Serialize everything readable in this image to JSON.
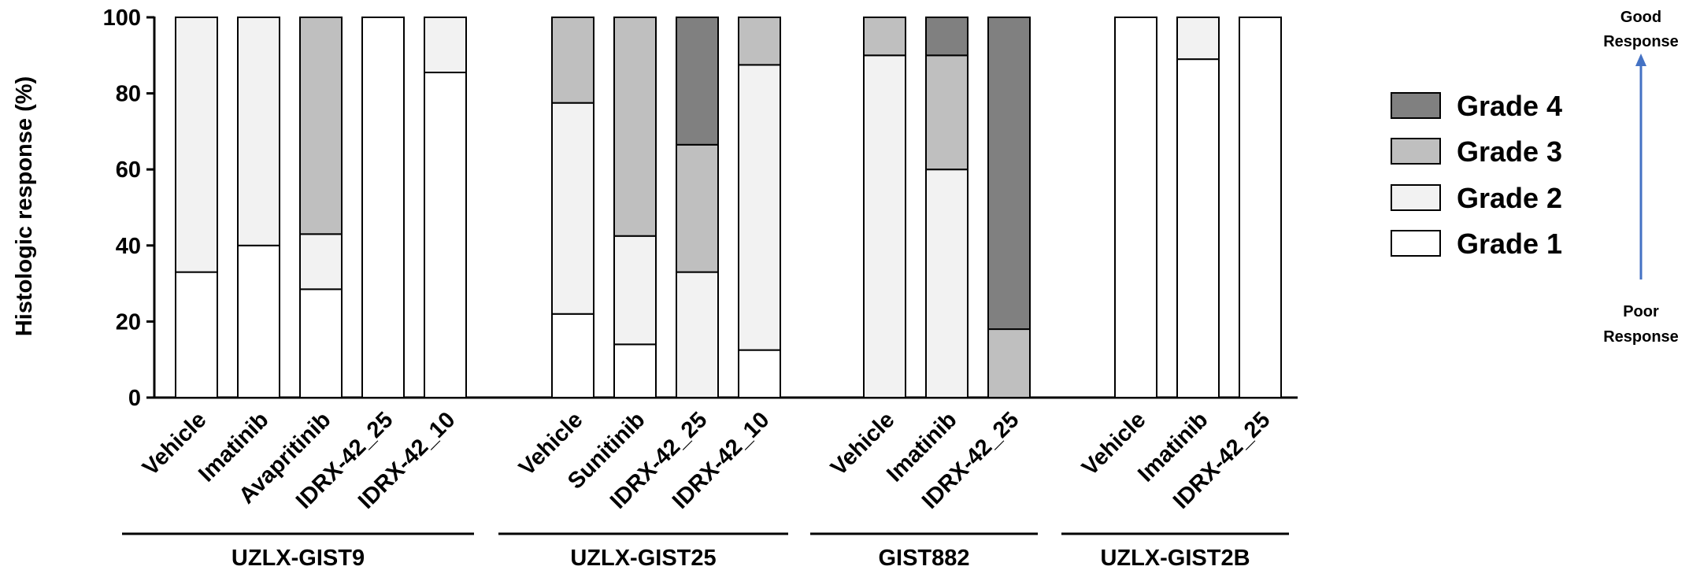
{
  "chart_data": {
    "type": "bar",
    "stacked": true,
    "ylabel": "Histologic response (%)",
    "ylim": [
      0,
      100
    ],
    "yticks": [
      0,
      20,
      40,
      60,
      80,
      100
    ],
    "grid": false,
    "legend_position": "right",
    "series": [
      {
        "name": "Grade 1",
        "color": "#ffffff"
      },
      {
        "name": "Grade 2",
        "color": "#f2f2f2"
      },
      {
        "name": "Grade 3",
        "color": "#bfbfbf"
      },
      {
        "name": "Grade 4",
        "color": "#808080"
      }
    ],
    "groups": [
      {
        "name": "UZLX-GIST9",
        "bars": [
          {
            "label": "Vehicle",
            "values": [
              33,
              67,
              0,
              0
            ]
          },
          {
            "label": "Imatinib",
            "values": [
              40,
              60,
              0,
              0
            ]
          },
          {
            "label": "Avapritinib",
            "values": [
              28.5,
              14.5,
              57,
              0
            ]
          },
          {
            "label": "IDRX-42_25",
            "values": [
              100,
              0,
              0,
              0
            ]
          },
          {
            "label": "IDRX-42_10",
            "values": [
              85.5,
              14.5,
              0,
              0
            ]
          }
        ]
      },
      {
        "name": "UZLX-GIST25",
        "bars": [
          {
            "label": "Vehicle",
            "values": [
              22,
              55.5,
              22.5,
              0
            ]
          },
          {
            "label": "Sunitinib",
            "values": [
              14,
              28.5,
              57.5,
              0
            ]
          },
          {
            "label": "IDRX-42_25",
            "values": [
              0,
              33,
              33.5,
              33.5
            ]
          },
          {
            "label": "IDRX-42_10",
            "values": [
              12.5,
              75,
              12.5,
              0
            ]
          }
        ]
      },
      {
        "name": "GIST882",
        "bars": [
          {
            "label": "Vehicle",
            "values": [
              0,
              90,
              10,
              0
            ]
          },
          {
            "label": "Imatinib",
            "values": [
              0,
              60,
              30,
              10
            ]
          },
          {
            "label": "IDRX-42_25",
            "values": [
              0,
              0,
              18,
              82
            ]
          }
        ]
      },
      {
        "name": "UZLX-GIST2B",
        "bars": [
          {
            "label": "Vehicle",
            "values": [
              100,
              0,
              0,
              0
            ]
          },
          {
            "label": "Imatinib",
            "values": [
              89,
              11,
              0,
              0
            ]
          },
          {
            "label": "IDRX-42_25",
            "values": [
              100,
              0,
              0,
              0
            ]
          }
        ]
      }
    ],
    "legend_order": [
      "Grade 4",
      "Grade 3",
      "Grade 2",
      "Grade 1"
    ],
    "annotation": {
      "top": "Good Response",
      "bottom": "Poor Response",
      "arrow_color": "#4472c4"
    }
  }
}
